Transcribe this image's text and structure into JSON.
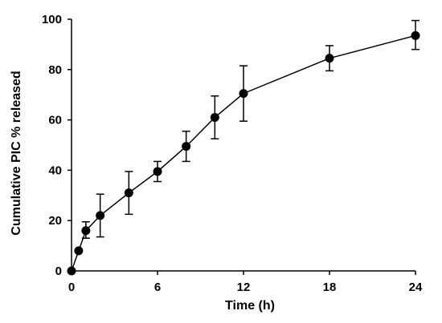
{
  "chart_data": {
    "type": "line",
    "title": "",
    "xlabel": "Time (h)",
    "ylabel": "Cumulative PIC % released",
    "xlim": [
      0,
      24
    ],
    "ylim": [
      0,
      100
    ],
    "xticks": [
      0,
      6,
      12,
      18,
      24
    ],
    "yticks": [
      0,
      20,
      40,
      60,
      80,
      100
    ],
    "grid": false,
    "legend": "none",
    "series": [
      {
        "x": [
          0,
          0.5,
          1,
          2,
          4,
          6,
          8,
          10,
          12,
          18,
          24
        ],
        "y": [
          0,
          8,
          16,
          22,
          31,
          39.5,
          49.5,
          61,
          70.5,
          84.5,
          93.5
        ],
        "err_low": [
          0,
          0,
          3,
          8.5,
          8.5,
          4,
          6,
          8.5,
          11,
          5,
          5.5
        ],
        "err_high": [
          0,
          0,
          3.5,
          8.5,
          8.5,
          4,
          6,
          8.5,
          11,
          5,
          6
        ],
        "color": "#000000",
        "marker": "circle"
      }
    ]
  }
}
